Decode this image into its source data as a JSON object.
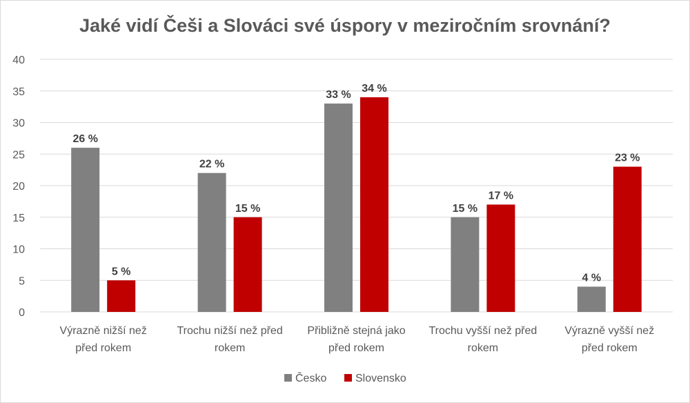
{
  "chart_data": {
    "type": "bar",
    "title": "Jaké vidí Češi a Slováci své úspory v meziročním srovnání?",
    "categories": [
      [
        "Výrazně nižší než",
        "před rokem"
      ],
      [
        "Trochu nižší než před",
        "rokem"
      ],
      [
        "Přibližně stejná jako",
        "před rokem"
      ],
      [
        "Trochu vyšší než před",
        "rokem"
      ],
      [
        "Výrazně vyšší než",
        "před rokem"
      ]
    ],
    "series": [
      {
        "name": "Česko",
        "values": [
          26,
          22,
          33,
          15,
          4
        ],
        "color": "#808080",
        "labels": [
          "26 %",
          "22 %",
          "33 %",
          "15 %",
          "4 %"
        ]
      },
      {
        "name": "Slovensko",
        "values": [
          5,
          15,
          34,
          17,
          23
        ],
        "color": "#c00000",
        "labels": [
          "5 %",
          "15 %",
          "34 %",
          "17 %",
          "23 %"
        ]
      }
    ],
    "ylim": [
      0,
      40
    ],
    "yticks": [
      0,
      5,
      10,
      15,
      20,
      25,
      30,
      35,
      40
    ],
    "grid": true,
    "legend_position": "bottom"
  }
}
